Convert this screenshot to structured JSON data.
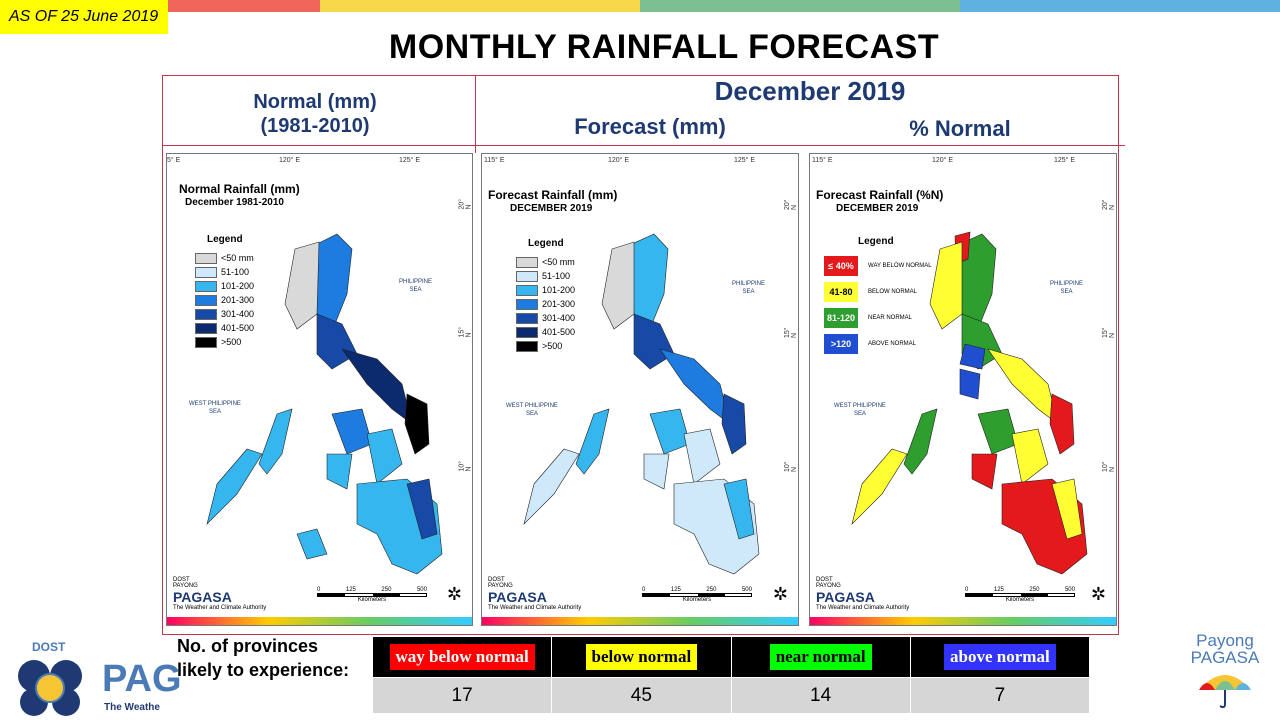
{
  "as_of": "AS OF 25 June 2019",
  "title": "MONTHLY RAINFALL FORECAST",
  "header": {
    "normal_title_1": "Normal (mm)",
    "normal_title_2": "(1981-2010)",
    "month": "December 2019",
    "forecast_title": "Forecast (mm)",
    "percent_title": "% Normal"
  },
  "top_colors": [
    "#f0655a",
    "#f6d84a",
    "#7bc08f",
    "#5fb2e0"
  ],
  "grid_labels": {
    "lon_115": "115° E",
    "lon_115_cut": "5° E",
    "lon_120": "120° E",
    "lon_125": "125° E",
    "lat_20": "20° N",
    "lat_15": "15° N",
    "lat_10": "10° N"
  },
  "panels": {
    "normal": {
      "title": "Normal Rainfall (mm)",
      "subtitle": "December 1981-2010",
      "legend_title": "Legend",
      "legend": [
        {
          "label": "<50 mm",
          "color": "#d9d9d9"
        },
        {
          "label": "51-100",
          "color": "#cfe8fa"
        },
        {
          "label": "101-200",
          "color": "#35b6ef"
        },
        {
          "label": "201-300",
          "color": "#1e7be0"
        },
        {
          "label": "301-400",
          "color": "#174aa6"
        },
        {
          "label": "401-500",
          "color": "#0c2a6e"
        },
        {
          "label": ">500",
          "color": "#000000"
        }
      ]
    },
    "forecast": {
      "title": "Forecast Rainfall (mm)",
      "subtitle": "DECEMBER 2019",
      "legend_title": "Legend",
      "legend": [
        {
          "label": "<50 mm",
          "color": "#d9d9d9"
        },
        {
          "label": "51-100",
          "color": "#cfe8fa"
        },
        {
          "label": "101-200",
          "color": "#35b6ef"
        },
        {
          "label": "201-300",
          "color": "#1e7be0"
        },
        {
          "label": "301-400",
          "color": "#174aa6"
        },
        {
          "label": "401-500",
          "color": "#0c2a6e"
        },
        {
          "label": ">500",
          "color": "#000000"
        }
      ]
    },
    "percent": {
      "title": "Forecast Rainfall (%N)",
      "subtitle": "DECEMBER 2019",
      "legend_title": "Legend",
      "legend": [
        {
          "code": "≤ 40%",
          "label": "WAY BELOW NORMAL",
          "color": "#e3191c",
          "text": "#ffffff"
        },
        {
          "code": "41-80",
          "label": "BELOW NORMAL",
          "color": "#ffff33",
          "text": "#000000"
        },
        {
          "code": "81-120",
          "label": "NEAR NORMAL",
          "color": "#2e9e2e",
          "text": "#ffffff"
        },
        {
          "code": ">120",
          "label": "ABOVE NORMAL",
          "color": "#1f4fd0",
          "text": "#ffffff"
        }
      ]
    }
  },
  "sea_labels": {
    "philippine_sea_1": "PHILIPPINE",
    "philippine_sea_2": "SEA",
    "west_philippine_sea_1": "WEST PHILIPPINE",
    "west_philippine_sea_2": "SEA"
  },
  "map_logo": {
    "dost": "DOST",
    "payong": "PAYONG",
    "pagasa": "PAGASA",
    "tagline": "The Weather and Climate Authority"
  },
  "scale": {
    "ticks": [
      "0",
      "125",
      "250",
      "500"
    ],
    "unit": "Kilometers"
  },
  "summary": {
    "label": "No. of provinces likely to experience:",
    "categories": [
      {
        "label": "way below normal",
        "bg": "#ff0000",
        "fg": "#ffffff",
        "count": "17"
      },
      {
        "label": "below normal",
        "bg": "#ffff00",
        "fg": "#000000",
        "count": "45"
      },
      {
        "label": "near normal",
        "bg": "#00ff00",
        "fg": "#000000",
        "count": "14"
      },
      {
        "label": "above normal",
        "bg": "#3333ff",
        "fg": "#ffffff",
        "count": "7"
      }
    ]
  },
  "logo_left": {
    "dost": "DOST",
    "pag": "PAG",
    "weather": "The Weathe"
  },
  "logo_right": {
    "line1": "Payong",
    "line2": "PAGASA"
  }
}
